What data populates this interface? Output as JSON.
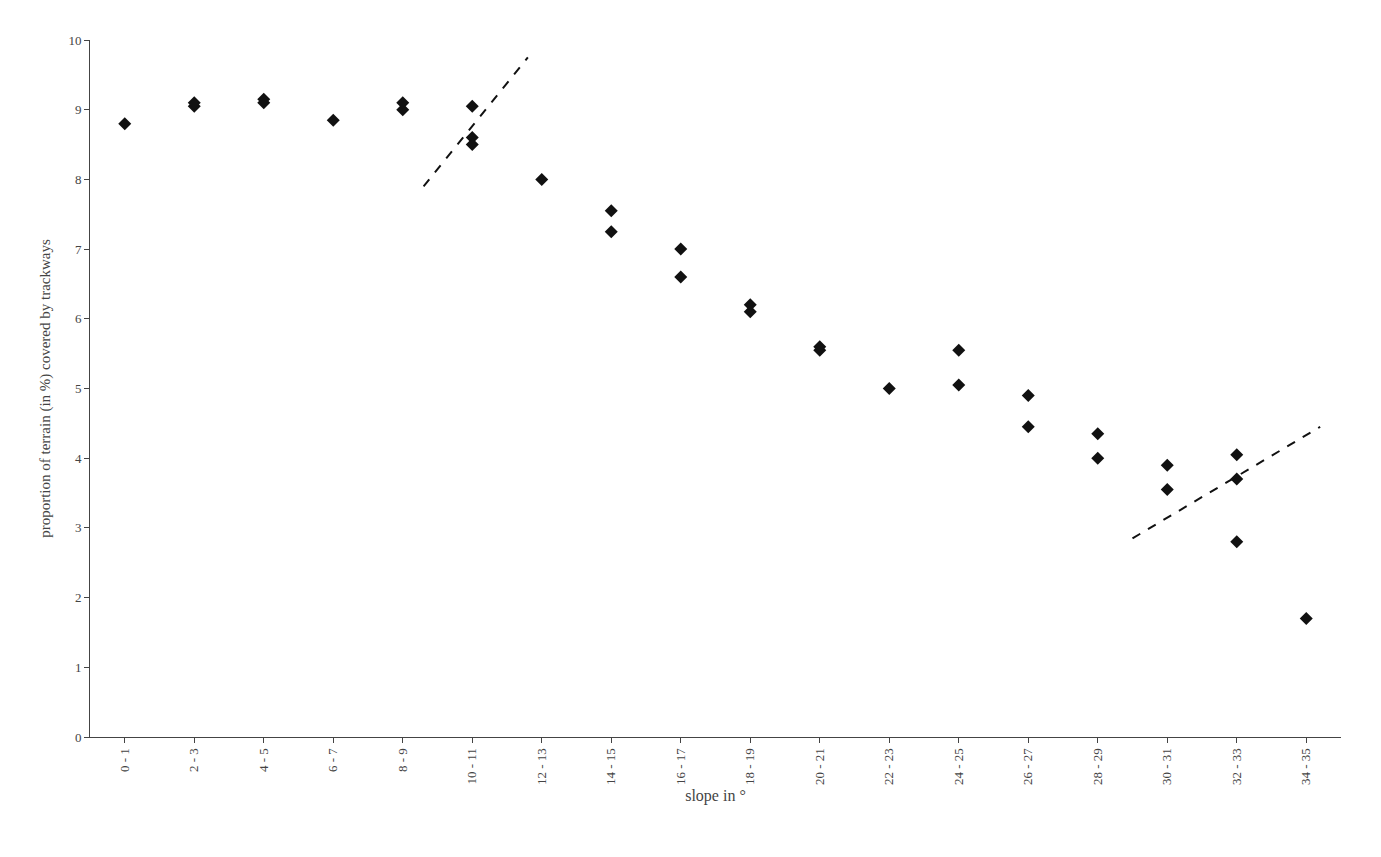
{
  "chart_data": {
    "type": "scatter",
    "xlabel": "slope in °",
    "ylabel": "proportion of terrain (in %) covered by trackways",
    "xlim": [
      -0.5,
      17.5
    ],
    "xticks": [
      {
        "value": 0,
        "label": "0 - 1"
      },
      {
        "value": 1,
        "label": "2 - 3"
      },
      {
        "value": 2,
        "label": "4 - 5"
      },
      {
        "value": 3,
        "label": "6 - 7"
      },
      {
        "value": 4,
        "label": "8 - 9"
      },
      {
        "value": 5,
        "label": "10 - 11"
      },
      {
        "value": 6,
        "label": "12 - 13"
      },
      {
        "value": 7,
        "label": "14 - 15"
      },
      {
        "value": 8,
        "label": "16 - 17"
      },
      {
        "value": 9,
        "label": "18 - 19"
      },
      {
        "value": 10,
        "label": "20 - 21"
      },
      {
        "value": 11,
        "label": "22 - 23"
      },
      {
        "value": 12,
        "label": "24 - 25"
      },
      {
        "value": 13,
        "label": "26 - 27"
      },
      {
        "value": 14,
        "label": "28 - 29"
      },
      {
        "value": 15,
        "label": "30 - 31"
      },
      {
        "value": 16,
        "label": "32 - 33"
      },
      {
        "value": 17,
        "label": "34 - 35"
      }
    ],
    "ylim": [
      0,
      10
    ],
    "yticks": [
      0,
      1,
      2,
      3,
      4,
      5,
      6,
      7,
      8,
      9,
      10
    ],
    "grid": false,
    "series": [
      {
        "type": "scatter",
        "marker": "diamond",
        "color": "#111111",
        "x": [
          0,
          1,
          1,
          2,
          2,
          3,
          4,
          4,
          5,
          5,
          5,
          6,
          7,
          7,
          8,
          8,
          9,
          9,
          10,
          10,
          11,
          12,
          12,
          13,
          13,
          14,
          14,
          15,
          15,
          16,
          16,
          16,
          17
        ],
        "values": [
          8.8,
          9.05,
          9.1,
          9.1,
          9.15,
          8.85,
          9.0,
          9.1,
          9.05,
          8.6,
          8.5,
          8.0,
          7.55,
          7.25,
          7.0,
          6.6,
          6.1,
          6.2,
          5.55,
          5.6,
          5.0,
          5.55,
          5.05,
          4.9,
          4.45,
          4.35,
          4.0,
          3.9,
          3.55,
          3.7,
          4.05,
          2.8,
          1.7
        ]
      },
      {
        "type": "line",
        "line_style": "dashed",
        "color": "#111111",
        "x": [
          4.3,
          5.8
        ],
        "values": [
          7.9,
          9.75
        ]
      },
      {
        "type": "line",
        "line_style": "dashed",
        "color": "#111111",
        "x": [
          14.5,
          17.2
        ],
        "values": [
          2.85,
          4.45
        ]
      }
    ]
  }
}
